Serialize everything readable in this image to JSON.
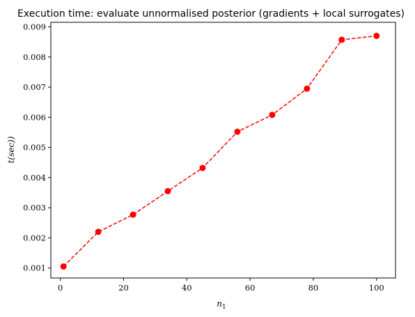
{
  "chart_data": {
    "type": "line",
    "title": "Execution time: evaluate unnormalised posterior (gradients + local surrogates)",
    "xlabel": "n_1",
    "ylabel": "t(sec))",
    "xlim": [
      -3,
      106
    ],
    "ylim": [
      0.00067,
      0.00915
    ],
    "x_ticks": [
      0,
      20,
      40,
      60,
      80,
      100
    ],
    "y_ticks": [
      0.001,
      0.002,
      0.003,
      0.004,
      0.005,
      0.006,
      0.007,
      0.008,
      0.009
    ],
    "x_tick_labels": [
      "0",
      "20",
      "40",
      "60",
      "80",
      "100"
    ],
    "y_tick_labels": [
      "0.001",
      "0.002",
      "0.003",
      "0.004",
      "0.005",
      "0.006",
      "0.007",
      "0.008",
      "0.009"
    ],
    "grid": false,
    "legend": "none",
    "series": [
      {
        "color": "#ff0000",
        "line_style": "dashed",
        "marker": "circle",
        "x": [
          1,
          12,
          23,
          34,
          45,
          56,
          67,
          78,
          89,
          100
        ],
        "y": [
          0.00105,
          0.0022,
          0.00277,
          0.00355,
          0.00432,
          0.00552,
          0.00608,
          0.00695,
          0.00857,
          0.0087
        ]
      }
    ]
  }
}
